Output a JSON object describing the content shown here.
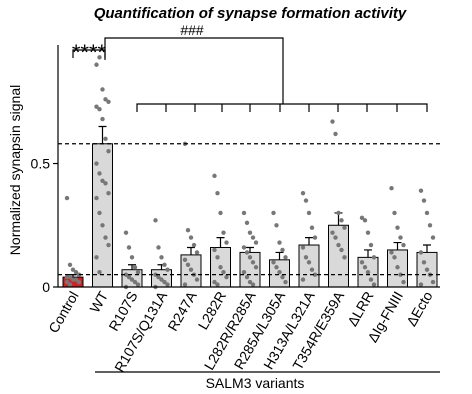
{
  "chart_data": {
    "type": "bar",
    "title": "Quantification of synapse formation activity",
    "y_label": "Normalized synapsin signal",
    "group_label": "SALM3 variants",
    "categories": [
      "Control",
      "WT",
      "R107S",
      "R107S/Q131A",
      "R247A",
      "L282R",
      "L282R/R285A",
      "R285A/L305A",
      "H313A/L321A",
      "T354R/E359A",
      "ΔLRR",
      "ΔIg-FNIII",
      "ΔEcto"
    ],
    "values": [
      0.04,
      0.58,
      0.07,
      0.07,
      0.13,
      0.16,
      0.14,
      0.11,
      0.17,
      0.25,
      0.12,
      0.15,
      0.14
    ],
    "errors": [
      0.01,
      0.07,
      0.02,
      0.02,
      0.03,
      0.04,
      0.02,
      0.03,
      0.03,
      0.05,
      0.03,
      0.03,
      0.03
    ],
    "colors": [
      "#d62020",
      "#d9d9d9",
      "#d9d9d9",
      "#d9d9d9",
      "#d9d9d9",
      "#d9d9d9",
      "#d9d9d9",
      "#d9d9d9",
      "#d9d9d9",
      "#d9d9d9",
      "#d9d9d9",
      "#d9d9d9",
      "#d9d9d9"
    ],
    "points": [
      [
        0.36,
        0.09,
        0.07,
        0.06,
        0.05,
        0.04,
        0.04,
        0.03,
        0.03,
        0.02,
        0.02,
        0.01
      ],
      [
        0.9,
        0.93,
        0.8,
        0.76,
        0.75,
        0.73,
        0.72,
        0.68,
        0.6,
        0.55,
        0.5,
        0.46,
        0.43,
        0.42,
        0.38,
        0.36,
        0.3,
        0.25,
        0.2,
        0.17,
        0.12,
        0.06
      ],
      [
        0.22,
        0.16,
        0.12,
        0.08,
        0.06,
        0.05,
        0.04,
        0.03,
        0.02,
        0.01,
        0.0
      ],
      [
        0.27,
        0.16,
        0.12,
        0.09,
        0.07,
        0.05,
        0.04,
        0.03,
        0.02,
        0.01,
        0.0
      ],
      [
        0.58,
        0.23,
        0.2,
        0.17,
        0.14,
        0.11,
        0.09,
        0.07,
        0.05,
        0.03,
        0.01
      ],
      [
        0.45,
        0.38,
        0.3,
        0.22,
        0.18,
        0.15,
        0.12,
        0.08,
        0.06,
        0.04,
        0.02,
        0.01
      ],
      [
        0.3,
        0.26,
        0.22,
        0.2,
        0.18,
        0.16,
        0.14,
        0.12,
        0.1,
        0.08,
        0.06,
        0.04,
        0.02,
        0.01
      ],
      [
        0.3,
        0.25,
        0.18,
        0.15,
        0.12,
        0.1,
        0.08,
        0.06,
        0.04,
        0.02
      ],
      [
        0.38,
        0.35,
        0.3,
        0.24,
        0.2,
        0.16,
        0.12,
        0.1,
        0.07,
        0.05,
        0.03
      ],
      [
        0.67,
        0.62,
        0.3,
        0.27,
        0.24,
        0.22,
        0.2,
        0.17,
        0.15,
        0.12
      ],
      [
        0.28,
        0.27,
        0.22,
        0.17,
        0.12,
        0.1,
        0.08,
        0.06,
        0.03,
        0.01
      ],
      [
        0.4,
        0.3,
        0.24,
        0.2,
        0.17,
        0.14,
        0.12,
        0.08,
        0.05,
        0.02
      ],
      [
        0.39,
        0.35,
        0.3,
        0.25,
        0.2,
        0.14,
        0.1,
        0.07,
        0.05,
        0.02,
        0.01
      ]
    ],
    "reference_lines": [
      0.58,
      0.05
    ],
    "annotations": [
      "****",
      "###"
    ],
    "ylim": [
      0,
      0.98
    ],
    "yticks": [
      0,
      0.5
    ]
  }
}
